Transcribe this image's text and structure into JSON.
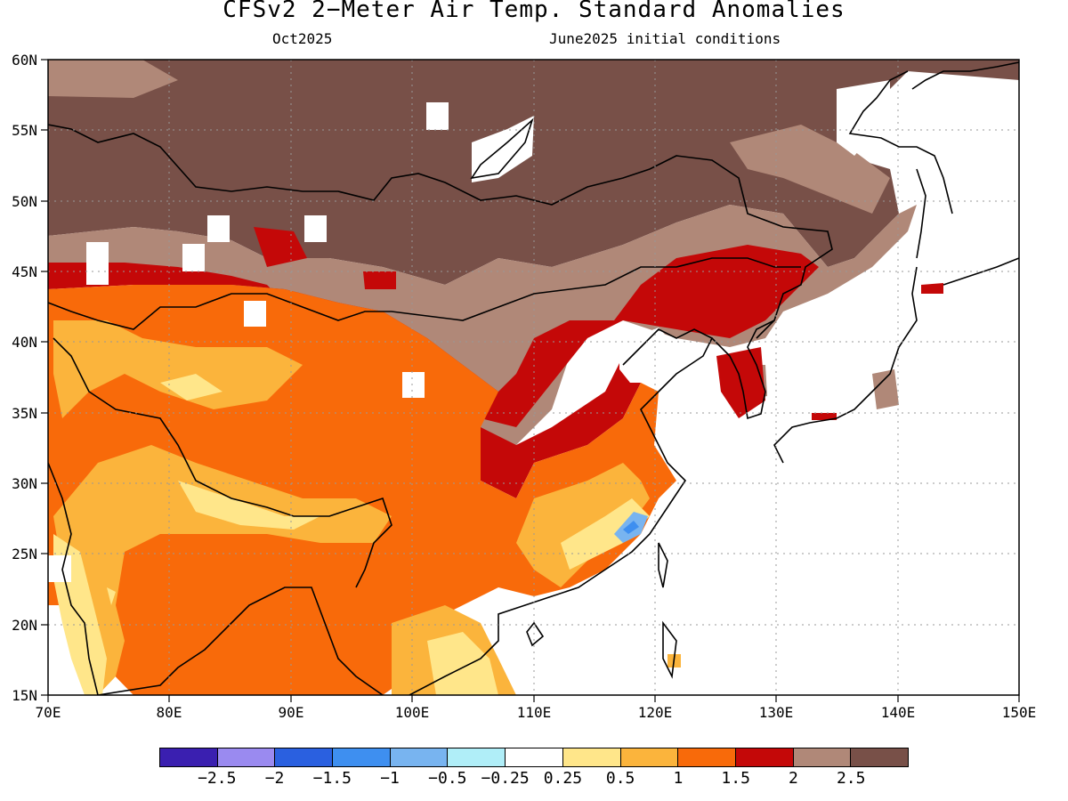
{
  "title": "CFSv2 2−Meter Air Temp. Standard Anomalies",
  "subtitle_left": "Oct2025",
  "subtitle_right": "June2025 initial conditions",
  "x_ticks": [
    "70E",
    "80E",
    "90E",
    "100E",
    "110E",
    "120E",
    "130E",
    "140E",
    "150E"
  ],
  "y_ticks": [
    "15N",
    "20N",
    "25N",
    "30N",
    "35N",
    "40N",
    "45N",
    "50N",
    "55N",
    "60N"
  ],
  "colorbar": {
    "colors": [
      "#3a1fb0",
      "#9a8af0",
      "#2a60e0",
      "#3e8ff0",
      "#78b4f0",
      "#b0eef8",
      "#ffffff",
      "#ffe68a",
      "#fbb43c",
      "#f86a0a",
      "#c40808",
      "#b08878",
      "#785048"
    ],
    "labels": [
      "−2.5",
      "−2",
      "−1.5",
      "−1",
      "−0.5",
      "−0.25",
      "0.25",
      "0.5",
      "1",
      "1.5",
      "2",
      "2.5"
    ]
  },
  "legend_colors": {
    "anom_neg25": "#3a1fb0",
    "anom_0_5": "#ffe68a",
    "anom_1": "#fbb43c",
    "anom_1_5": "#f86a0a",
    "anom_2": "#c40808",
    "anom_2_5": "#b08878",
    "anom_gt_2_5": "#785048",
    "neg_blue": "#78b4f0"
  }
}
